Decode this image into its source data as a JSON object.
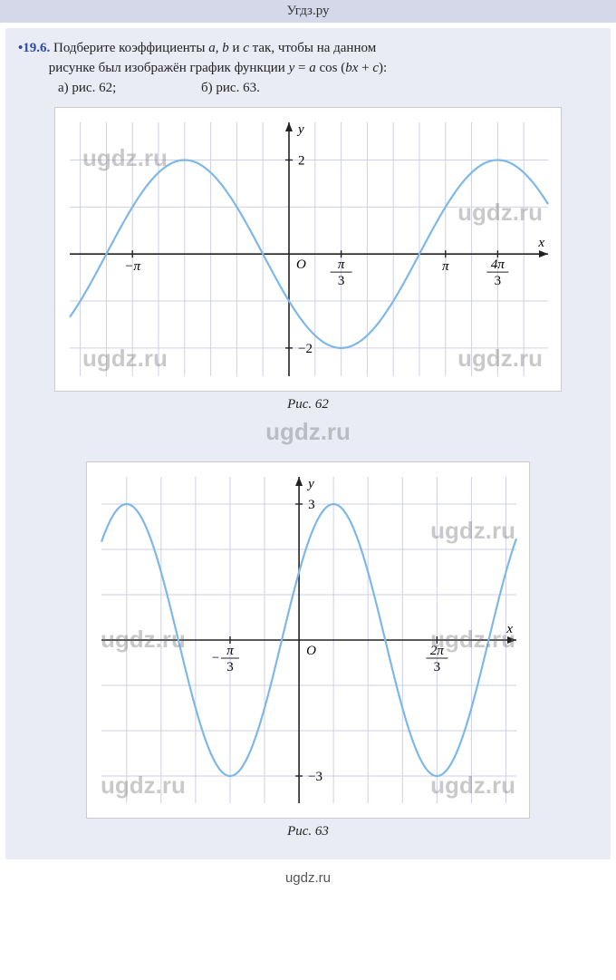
{
  "header": {
    "domain": "Угдз.ру"
  },
  "footer": {
    "domain": "ugdz.ru"
  },
  "problem": {
    "number": "•19.6.",
    "text_l1": "Подберите коэффициенты ",
    "a": "a",
    "comma1": ", ",
    "b": "b",
    "and": " и ",
    "c": "c",
    "text_l1b": " так, чтобы на данном",
    "text_l2a": "рисунке был изображён график функции ",
    "eq_y": "y",
    "eq_eq": " = ",
    "eq_a": "a",
    "eq_cos": " cos (",
    "eq_b": "b",
    "eq_x": "x",
    "eq_plus": " + ",
    "eq_c": "c",
    "eq_close": "):",
    "part_a": "а) рис. 62;",
    "part_b": "б) рис. 63."
  },
  "watermarks": {
    "text": "ugdz.ru"
  },
  "fig62": {
    "caption": "Рис. 62",
    "grid_color": "#cfcfe8",
    "axis_color": "#222222",
    "curve_color": "#7fb8e6",
    "curve_width": 2.2,
    "bg": "#ffffff",
    "font_size": 15,
    "xrange": [
      -4.4,
      5.2
    ],
    "yrange": [
      -2.6,
      2.8
    ],
    "x_grid_step_minor": 0.5235988,
    "y_grid_step": 1,
    "xticks": [
      {
        "v": -3.14159,
        "label": "−π"
      },
      {
        "v": 1.0472,
        "label": "π/3",
        "frac": [
          "π",
          "3"
        ]
      },
      {
        "v": 3.14159,
        "label": "π"
      },
      {
        "v": 4.18879,
        "label": "4π/3",
        "frac": [
          "4π",
          "3"
        ]
      }
    ],
    "yticks": [
      {
        "v": 2,
        "label": "2"
      },
      {
        "v": -2,
        "label": "−2"
      }
    ],
    "origin_label": "O",
    "axis_labels": {
      "x": "x",
      "y": "y"
    },
    "curve": {
      "A": 2,
      "B": 1,
      "C": 2.0944,
      "samples": 200
    }
  },
  "fig63": {
    "caption": "Рис. 63",
    "grid_color": "#cfcfe8",
    "axis_color": "#222222",
    "curve_color": "#7fb8e6",
    "curve_width": 2.2,
    "bg": "#ffffff",
    "font_size": 15,
    "xrange": [
      -3.0,
      3.3
    ],
    "yrange": [
      -3.6,
      3.6
    ],
    "x_grid_step_minor": 0.5235988,
    "y_grid_step": 1,
    "xticks": [
      {
        "v": -1.0472,
        "label": "−π/3",
        "frac_neg": [
          "π",
          "3"
        ]
      },
      {
        "v": 2.0944,
        "label": "2π/3",
        "frac": [
          "2π",
          "3"
        ]
      }
    ],
    "yticks": [
      {
        "v": 3,
        "label": "3"
      },
      {
        "v": -3,
        "label": "−3"
      }
    ],
    "origin_label": "O",
    "axis_labels": {
      "x": "x",
      "y": "y"
    },
    "curve": {
      "A": 3,
      "B": 2,
      "C": -1.0472,
      "samples": 220
    }
  }
}
